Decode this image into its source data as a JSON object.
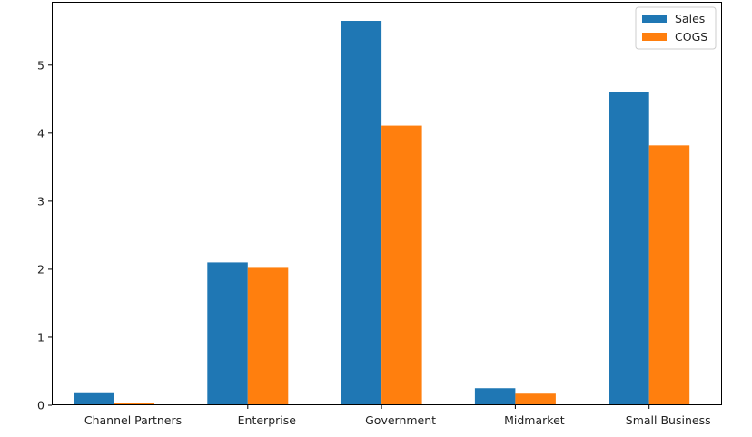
{
  "chart_data": {
    "type": "bar",
    "categories": [
      "Channel Partners",
      "Enterprise",
      "Government",
      "Midmarket",
      "Small Business"
    ],
    "series": [
      {
        "name": "Sales",
        "values": [
          0.19,
          2.1,
          5.65,
          0.25,
          4.6
        ],
        "color": "#1f77b4"
      },
      {
        "name": "COGS",
        "values": [
          0.04,
          2.02,
          4.11,
          0.17,
          3.82
        ],
        "color": "#ff7f0e"
      }
    ],
    "y_ticks": [
      0,
      1,
      2,
      3,
      4,
      5
    ],
    "ylim": [
      0,
      5.93
    ],
    "grid": false,
    "legend": "top-right"
  }
}
